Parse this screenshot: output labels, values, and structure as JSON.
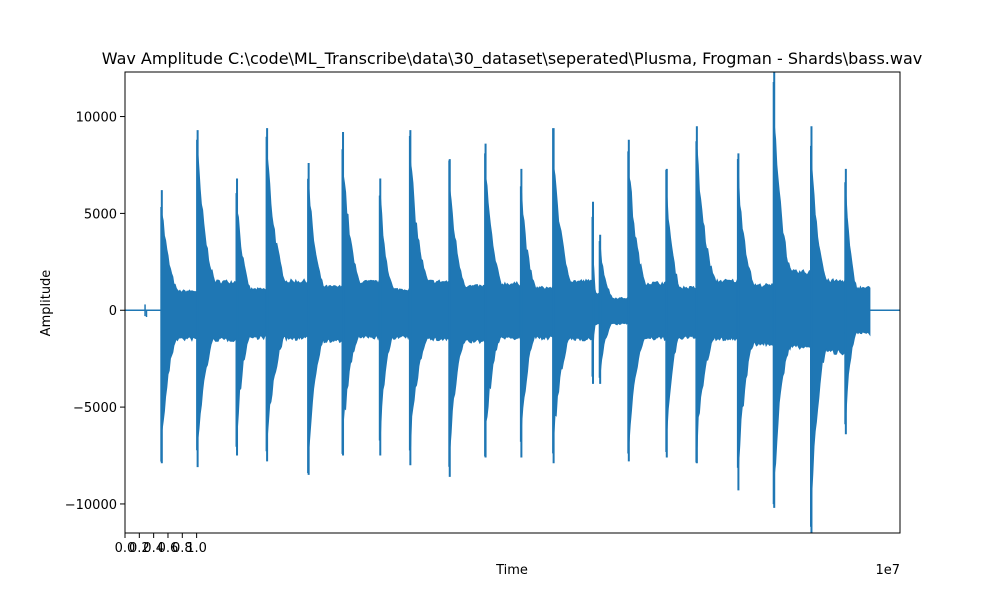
{
  "chart_data": {
    "type": "line",
    "title": "Wav Amplitude C:\\code\\ML_Transcribe\\data\\30_dataset\\seperated\\Plusma, Frogman - Shards\\bass.wav",
    "xlabel": "Time",
    "ylabel": "Amplitude",
    "x_offset_label": "1e7",
    "xlim": [
      0,
      10.82
    ],
    "ylim": [
      -11500,
      12300
    ],
    "x_tick_values": [
      0,
      0.2,
      0.4,
      0.6,
      0.8,
      1.0
    ],
    "x_tick_labels": [
      "0.0",
      "0.2",
      "0.4",
      "0.6",
      "0.8",
      "1.0"
    ],
    "y_tick_values": [
      -10000,
      -5000,
      0,
      5000,
      10000
    ],
    "y_tick_labels": [
      "−10000",
      "−5000",
      "0",
      "5000",
      "10000"
    ],
    "grid": false,
    "color": "#1f77b4",
    "series": [
      {
        "pre_roll": [
          {
            "time": 0.28,
            "high": 300,
            "low": -300
          },
          {
            "time": 0.3,
            "high": 0,
            "low": -350
          }
        ],
        "notes": [
          {
            "start": 0.5,
            "end": 1.0,
            "high": 6200,
            "low": -7900
          },
          {
            "start": 1.0,
            "end": 1.55,
            "high": 9300,
            "low": -8100
          },
          {
            "start": 1.55,
            "end": 1.97,
            "high": 6800,
            "low": -7500
          },
          {
            "start": 1.97,
            "end": 2.55,
            "high": 9400,
            "low": -7800
          },
          {
            "start": 2.55,
            "end": 3.03,
            "high": 7600,
            "low": -8500
          },
          {
            "start": 3.03,
            "end": 3.55,
            "high": 9200,
            "low": -7500
          },
          {
            "start": 3.55,
            "end": 3.97,
            "high": 6800,
            "low": -7500
          },
          {
            "start": 3.97,
            "end": 4.52,
            "high": 9300,
            "low": -8000
          },
          {
            "start": 4.52,
            "end": 5.02,
            "high": 7800,
            "low": -8600
          },
          {
            "start": 5.02,
            "end": 5.52,
            "high": 8600,
            "low": -7600
          },
          {
            "start": 5.52,
            "end": 5.97,
            "high": 7300,
            "low": -7600
          },
          {
            "start": 5.97,
            "end": 6.52,
            "high": 9400,
            "low": -7900
          },
          {
            "start": 6.52,
            "end": 6.62,
            "high": 5600,
            "low": -3800
          },
          {
            "start": 6.62,
            "end": 7.02,
            "high": 3900,
            "low": -3800
          },
          {
            "start": 7.02,
            "end": 7.55,
            "high": 8800,
            "low": -7800
          },
          {
            "start": 7.55,
            "end": 7.97,
            "high": 7300,
            "low": -7600
          },
          {
            "start": 7.97,
            "end": 8.55,
            "high": 9500,
            "low": -7900
          },
          {
            "start": 8.55,
            "end": 9.05,
            "high": 8100,
            "low": -9300
          },
          {
            "start": 9.05,
            "end": 9.57,
            "high": 12300,
            "low": -10200
          },
          {
            "start": 9.57,
            "end": 10.05,
            "high": 9500,
            "low": -11500
          },
          {
            "start": 10.05,
            "end": 10.4,
            "high": 7300,
            "low": -6400
          }
        ]
      }
    ]
  }
}
